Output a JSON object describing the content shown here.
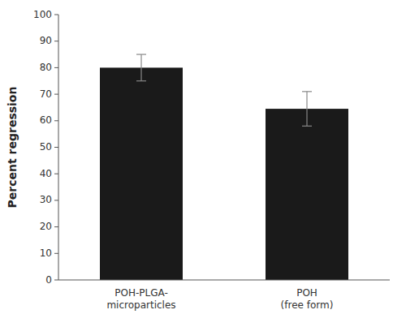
{
  "chart_data": {
    "type": "bar",
    "categories": [
      "POH-PLGA-\nmicroparticles",
      "POH\n(free form)"
    ],
    "values": [
      80,
      64.5
    ],
    "errors": [
      5.0,
      6.5
    ],
    "color": "#1a1a1a",
    "ylabel": "Percent regression",
    "ylim": [
      0,
      100
    ],
    "yticks": [
      0,
      10,
      20,
      30,
      40,
      50,
      60,
      70,
      80,
      90,
      100
    ],
    "grid": false
  }
}
